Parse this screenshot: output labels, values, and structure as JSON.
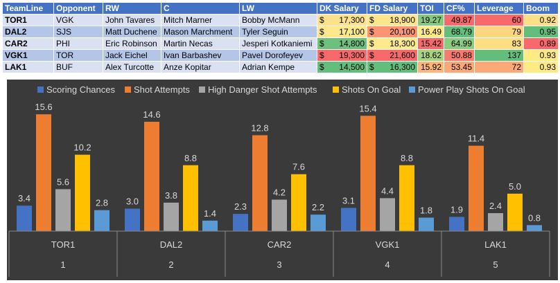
{
  "table": {
    "headers": [
      "TeamLine",
      "Opponent",
      "RW",
      "C",
      "LW",
      "DK Salary",
      "FD Salary",
      "TOI",
      "CF%",
      "Leverage",
      "Boom"
    ],
    "rows": [
      {
        "team": "TOR1",
        "opp": "VGK",
        "rw": "John Tavares",
        "c": "Mitch Marner",
        "lw": "Bobby McMann",
        "dk": "17,300",
        "fd": "18,900",
        "toi": "19.27",
        "cf": "49.87",
        "lev": "60",
        "boom": "0.92",
        "colors": {
          "dk": "#fde28a",
          "fd": "#fee68b",
          "toi": "#86c97e",
          "cf": "#f8696b",
          "lev": "#f8696b",
          "boom": "#fcdf87"
        }
      },
      {
        "team": "DAL2",
        "opp": "SJS",
        "rw": "Matt Duchene",
        "c": "Mason Marchment",
        "lw": "Tyler Seguin",
        "dk": "17,100",
        "fd": "20,100",
        "toi": "16.49",
        "cf": "68.79",
        "lev": "79",
        "boom": "0.95",
        "colors": {
          "dk": "#fee88c",
          "fd": "#fa9473",
          "toi": "#ffeb84",
          "cf": "#63be7b",
          "lev": "#fed680",
          "boom": "#63be7b"
        }
      },
      {
        "team": "CAR2",
        "opp": "PHI",
        "rw": "Eric Robinson",
        "c": "Martin Necas",
        "lw": "Jesperi Kotkaniemi",
        "dk": "14,800",
        "fd": "18,300",
        "toi": "15.42",
        "cf": "64.99",
        "lev": "83",
        "boom": "0.89",
        "colors": {
          "dk": "#6ec17d",
          "fd": "#fee98c",
          "toi": "#f8696b",
          "cf": "#8ccc7e",
          "lev": "#fede83",
          "boom": "#f8696b"
        }
      },
      {
        "team": "VGK1",
        "opp": "TOR",
        "rw": "Jack Eichel",
        "c": "Ivan Barbashev",
        "lw": "Pavel Dorofeyev",
        "dk": "19,300",
        "fd": "21,600",
        "toi": "18.62",
        "cf": "50.88",
        "lev": "137",
        "boom": "0.93",
        "colors": {
          "dk": "#f8696b",
          "fd": "#f8696b",
          "toi": "#a8d480",
          "cf": "#f97a6f",
          "lev": "#63be7b",
          "boom": "#ffeb84"
        }
      },
      {
        "team": "LAK1",
        "opp": "BUF",
        "rw": "Alex Turcotte",
        "c": "Anze Kopitar",
        "lw": "Adrian Kempe",
        "dk": "14,500",
        "fd": "16,300",
        "toi": "15.92",
        "cf": "53.45",
        "lev": "72",
        "boom": "0.93",
        "colors": {
          "dk": "#63be7b",
          "fd": "#63be7b",
          "toi": "#fbb678",
          "cf": "#fba876",
          "lev": "#fbaa77",
          "boom": "#ffeb84"
        }
      }
    ],
    "currency": "$"
  },
  "chart_data": {
    "type": "bar",
    "legend_position": "top",
    "background": "#3a3a3a",
    "categories": [
      {
        "team": "TOR1",
        "rank": "1"
      },
      {
        "team": "DAL2",
        "rank": "2"
      },
      {
        "team": "CAR2",
        "rank": "3"
      },
      {
        "team": "VGK1",
        "rank": "4"
      },
      {
        "team": "LAK1",
        "rank": "5"
      }
    ],
    "series": [
      {
        "name": "Scoring Chances",
        "color": "#4472c4",
        "values": [
          3.4,
          3.0,
          2.3,
          3.1,
          1.9
        ],
        "labels": [
          "3.4",
          "3.0",
          "2.3",
          "3.1",
          "1.9"
        ]
      },
      {
        "name": "Shot Attempts",
        "color": "#ed7d31",
        "values": [
          15.6,
          14.6,
          12.8,
          15.4,
          11.4
        ],
        "labels": [
          "15.6",
          "14.6",
          "12.8",
          "15.4",
          "11.4"
        ]
      },
      {
        "name": "High Danger Shot Attempts",
        "color": "#a5a5a5",
        "values": [
          5.6,
          3.8,
          4.2,
          4.4,
          2.4
        ],
        "labels": [
          "5.6",
          "3.8",
          "4.2",
          "4.4",
          "2.4"
        ]
      },
      {
        "name": "Shots On Goal",
        "color": "#ffc000",
        "values": [
          10.2,
          8.8,
          7.6,
          8.8,
          5.0
        ],
        "labels": [
          "10.2",
          "8.8",
          "7.6",
          "8.8",
          "5.0"
        ]
      },
      {
        "name": "Power Play Shots On Goal",
        "color": "#5b9bd5",
        "values": [
          2.8,
          1.4,
          2.2,
          1.8,
          0.8
        ],
        "labels": [
          "2.8",
          "1.4",
          "2.2",
          "1.8",
          "0.8"
        ]
      }
    ],
    "ylim": [
      0,
      17
    ],
    "grid": false
  }
}
